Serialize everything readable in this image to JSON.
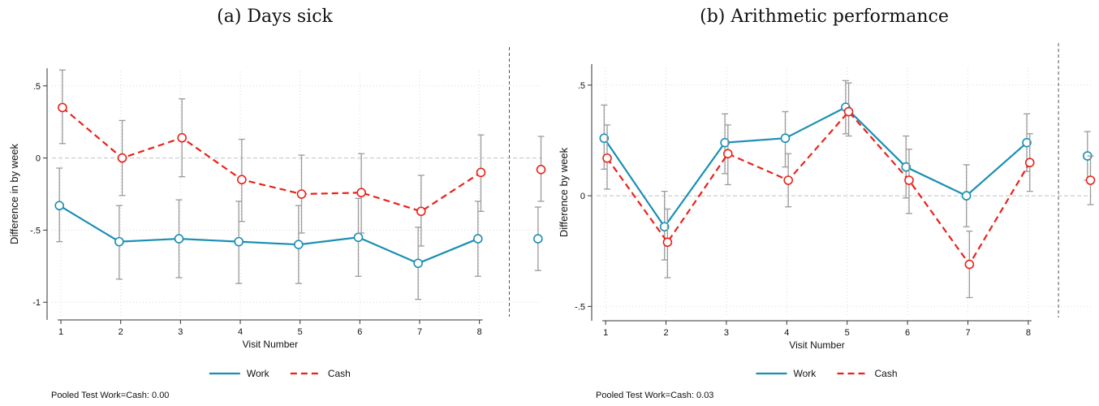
{
  "chart_data": [
    {
      "type": "line",
      "title": "(a) Days sick",
      "xlabel": "Visit Number",
      "ylabel": "Difference in by week",
      "x": [
        1,
        2,
        3,
        4,
        5,
        6,
        7,
        8
      ],
      "xticks": [
        "1",
        "2",
        "3",
        "4",
        "5",
        "6",
        "7",
        "8"
      ],
      "yticks": [
        {
          "value": 0.5,
          "label": ".5"
        },
        {
          "value": 0,
          "label": "0"
        },
        {
          "value": -0.5,
          "label": "-.5"
        },
        {
          "value": -1,
          "label": "-1"
        }
      ],
      "xlim": [
        0.85,
        9.05
      ],
      "ylim": [
        -1.1,
        0.6
      ],
      "grid": true,
      "reference_line_y": 0,
      "separator_x": 8.5,
      "legend_position": "bottom",
      "series": [
        {
          "name": "Work",
          "color": "#1a8fb3",
          "dash": "solid",
          "values": [
            -0.33,
            -0.58,
            -0.56,
            -0.58,
            -0.6,
            -0.55,
            -0.73,
            -0.56
          ],
          "ci_low": [
            -0.58,
            -0.84,
            -0.83,
            -0.87,
            -0.87,
            -0.82,
            -0.98,
            -0.82
          ],
          "ci_high": [
            -0.07,
            -0.33,
            -0.29,
            -0.3,
            -0.33,
            -0.28,
            -0.48,
            -0.3
          ],
          "pooled": {
            "x": 8.98,
            "value": -0.56,
            "ci_low": -0.78,
            "ci_high": -0.34
          }
        },
        {
          "name": "Cash",
          "color": "#e8221a",
          "dash": "dashed",
          "values": [
            0.35,
            0.0,
            0.14,
            -0.15,
            -0.25,
            -0.24,
            -0.37,
            -0.1
          ],
          "ci_low": [
            0.1,
            -0.26,
            -0.13,
            -0.44,
            -0.52,
            -0.52,
            -0.61,
            -0.37
          ],
          "ci_high": [
            0.61,
            0.26,
            0.41,
            0.13,
            0.02,
            0.03,
            -0.12,
            0.16
          ],
          "pooled": {
            "x": 9.03,
            "value": -0.08,
            "ci_low": -0.3,
            "ci_high": 0.15
          }
        }
      ],
      "footnote": "Pooled Test Work=Cash: 0.00"
    },
    {
      "type": "line",
      "title": "(b) Arithmetic performance",
      "xlabel": "Visit Number",
      "ylabel": "Difference by week",
      "x": [
        1,
        2,
        3,
        4,
        5,
        6,
        7,
        8
      ],
      "xticks": [
        "1",
        "2",
        "3",
        "4",
        "5",
        "6",
        "7",
        "8"
      ],
      "yticks": [
        {
          "value": 0.5,
          "label": ".5"
        },
        {
          "value": 0,
          "label": "0"
        },
        {
          "value": -0.5,
          "label": "-.5"
        }
      ],
      "xlim": [
        0.85,
        9.05
      ],
      "ylim": [
        -0.55,
        0.58
      ],
      "grid": true,
      "reference_line_y": 0,
      "separator_x": 8.5,
      "legend_position": "bottom",
      "series": [
        {
          "name": "Work",
          "color": "#1a8fb3",
          "dash": "solid",
          "values": [
            0.26,
            -0.14,
            0.24,
            0.26,
            0.4,
            0.13,
            0.0,
            0.24
          ],
          "ci_low": [
            0.12,
            -0.29,
            0.1,
            0.13,
            0.28,
            -0.01,
            -0.14,
            0.11
          ],
          "ci_high": [
            0.41,
            0.02,
            0.37,
            0.38,
            0.52,
            0.27,
            0.14,
            0.37
          ],
          "pooled": {
            "x": 8.98,
            "value": 0.18,
            "ci_low": 0.07,
            "ci_high": 0.29
          }
        },
        {
          "name": "Cash",
          "color": "#e8221a",
          "dash": "dashed",
          "values": [
            0.17,
            -0.21,
            0.19,
            0.07,
            0.38,
            0.07,
            -0.31,
            0.15
          ],
          "ci_low": [
            0.03,
            -0.37,
            0.05,
            -0.05,
            0.27,
            -0.08,
            -0.46,
            0.02
          ],
          "ci_high": [
            0.32,
            -0.06,
            0.32,
            0.19,
            0.51,
            0.21,
            -0.16,
            0.28
          ],
          "pooled": {
            "x": 9.03,
            "value": 0.07,
            "ci_low": -0.04,
            "ci_high": 0.18
          }
        }
      ],
      "footnote": "Pooled Test Work=Cash: 0.03"
    }
  ]
}
